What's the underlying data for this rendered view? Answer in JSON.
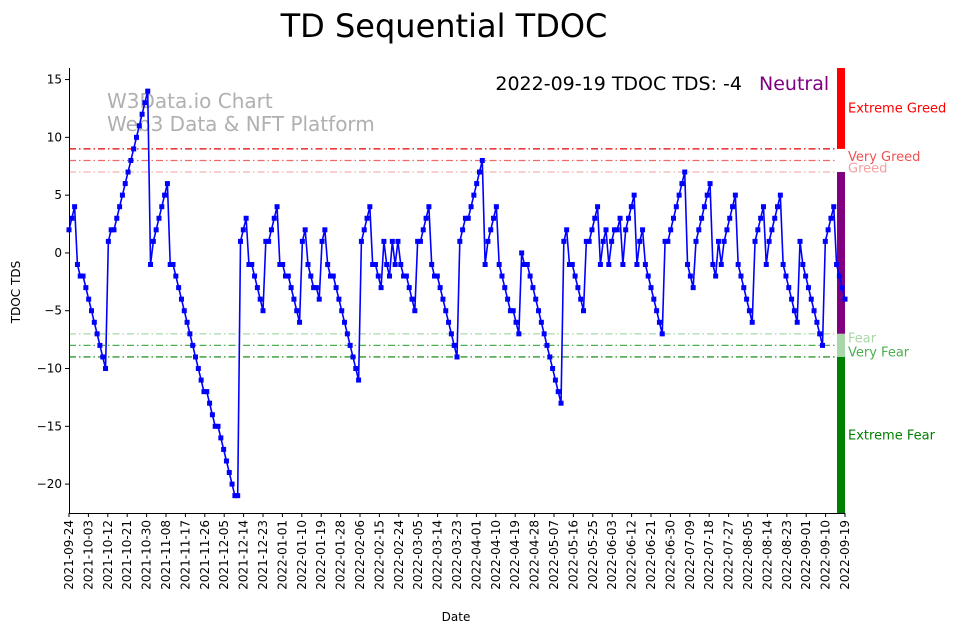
{
  "chart_data": {
    "type": "line",
    "title": "TD Sequential TDOC",
    "xlabel": "Date",
    "ylabel": "TDOC TDS",
    "ylim": [
      -22.5,
      16
    ],
    "yticks": [
      15,
      10,
      5,
      0,
      -5,
      -10,
      -15,
      -20
    ],
    "ytick_labels": [
      "15",
      "10",
      "5",
      "0",
      "−5",
      "−10",
      "−15",
      "−20"
    ],
    "x_start": "2021-09-24",
    "x_end": "2022-09-19",
    "xtick_labels": [
      "2021-09-24",
      "2021-10-03",
      "2021-10-12",
      "2021-10-21",
      "2021-10-30",
      "2021-11-08",
      "2021-11-17",
      "2021-11-26",
      "2021-12-05",
      "2021-12-14",
      "2021-12-23",
      "2022-01-01",
      "2022-01-10",
      "2022-01-19",
      "2022-01-28",
      "2022-02-06",
      "2022-02-15",
      "2022-02-24",
      "2022-03-05",
      "2022-03-14",
      "2022-03-23",
      "2022-04-01",
      "2022-04-10",
      "2022-04-19",
      "2022-04-28",
      "2022-05-07",
      "2022-05-16",
      "2022-05-25",
      "2022-06-03",
      "2022-06-12",
      "2022-06-21",
      "2022-06-30",
      "2022-07-09",
      "2022-07-18",
      "2022-07-27",
      "2022-08-05",
      "2022-08-14",
      "2022-08-23",
      "2022-09-01",
      "2022-09-10",
      "2022-09-19"
    ],
    "series": [
      {
        "name": "TDOC TDS",
        "color": "#0000ff",
        "values": [
          2,
          3,
          4,
          -1,
          -2,
          -2,
          -3,
          -4,
          -5,
          -6,
          -7,
          -8,
          -9,
          -10,
          1,
          2,
          2,
          3,
          4,
          5,
          6,
          7,
          8,
          9,
          10,
          11,
          12,
          13,
          14,
          -1,
          1,
          2,
          3,
          4,
          5,
          6,
          -1,
          -1,
          -2,
          -3,
          -4,
          -5,
          -6,
          -7,
          -8,
          -9,
          -10,
          -11,
          -12,
          -12,
          -13,
          -14,
          -15,
          -15,
          -16,
          -17,
          -18,
          -19,
          -20,
          -21,
          -21,
          1,
          2,
          3,
          -1,
          -1,
          -2,
          -3,
          -4,
          -5,
          1,
          1,
          2,
          3,
          4,
          -1,
          -1,
          -2,
          -2,
          -3,
          -4,
          -5,
          -6,
          1,
          2,
          -1,
          -2,
          -3,
          -3,
          -4,
          1,
          2,
          -1,
          -2,
          -2,
          -3,
          -4,
          -5,
          -6,
          -7,
          -8,
          -9,
          -10,
          -11,
          1,
          2,
          3,
          4,
          -1,
          -1,
          -2,
          -3,
          1,
          -1,
          -2,
          1,
          -1,
          1,
          -1,
          -2,
          -2,
          -3,
          -4,
          -5,
          1,
          1,
          2,
          3,
          4,
          -1,
          -2,
          -2,
          -3,
          -4,
          -5,
          -6,
          -7,
          -8,
          -9,
          1,
          2,
          3,
          3,
          4,
          5,
          6,
          7,
          8,
          -1,
          1,
          2,
          3,
          4,
          -1,
          -2,
          -3,
          -4,
          -5,
          -5,
          -6,
          -7,
          0,
          -1,
          -1,
          -2,
          -3,
          -4,
          -5,
          -6,
          -7,
          -8,
          -9,
          -10,
          -11,
          -12,
          -13,
          1,
          2,
          -1,
          -1,
          -2,
          -3,
          -4,
          -5,
          1,
          1,
          2,
          3,
          4,
          -1,
          1,
          2,
          -1,
          1,
          2,
          2,
          3,
          -1,
          2,
          3,
          4,
          5,
          -1,
          1,
          2,
          -1,
          -2,
          -3,
          -4,
          -5,
          -6,
          -7,
          1,
          1,
          2,
          3,
          4,
          5,
          6,
          7,
          -1,
          -2,
          -3,
          1,
          2,
          3,
          4,
          5,
          6,
          -1,
          -2,
          1,
          -1,
          1,
          2,
          3,
          4,
          5,
          -1,
          -2,
          -3,
          -4,
          -5,
          -6,
          1,
          2,
          3,
          4,
          -1,
          1,
          2,
          3,
          4,
          5,
          -1,
          -2,
          -3,
          -4,
          -5,
          -6,
          1,
          -1,
          -2,
          -3,
          -4,
          -5,
          -6,
          -7,
          -8,
          1,
          2,
          3,
          4,
          -1,
          -2,
          -3,
          -4
        ]
      }
    ],
    "reference_lines": [
      {
        "name": "very-greed-line",
        "y": 9,
        "color": "#e60000"
      },
      {
        "name": "greed-line-mid",
        "y": 8,
        "color": "#f06a6a"
      },
      {
        "name": "greed-line",
        "y": 7,
        "color": "#f4b0b0"
      },
      {
        "name": "fear-line",
        "y": -7,
        "color": "#a8d8a8"
      },
      {
        "name": "very-fear-line",
        "y": -8,
        "color": "#4caf50"
      },
      {
        "name": "extreme-fear-line",
        "y": -9,
        "color": "#008000"
      }
    ],
    "zone_bar": [
      {
        "name": "extreme-greed-zone",
        "from": 9,
        "to": 16,
        "color": "#ff0000"
      },
      {
        "name": "neutral-zone",
        "from": -7,
        "to": 7,
        "color": "#800080"
      },
      {
        "name": "fear-zone",
        "from": -9,
        "to": -7,
        "color": "#a8d8a8"
      },
      {
        "name": "extreme-fear-zone",
        "from": -22.5,
        "to": -9,
        "color": "#008000"
      }
    ],
    "zone_labels": [
      {
        "text": "Extreme Greed",
        "y": 12.5,
        "color": "#ff0000"
      },
      {
        "text": "Very Greed",
        "y": 8.3,
        "color": "#f05050"
      },
      {
        "text": "Greed",
        "y": 7.3,
        "color": "#f4a0a0"
      },
      {
        "text": "Fear",
        "y": -7.4,
        "color": "#a8d8a8"
      },
      {
        "text": "Very Fear",
        "y": -8.6,
        "color": "#4caf50"
      },
      {
        "text": "Extreme Fear",
        "y": -15.8,
        "color": "#008000"
      }
    ],
    "headline": "2022-09-19 TDOC TDS: -4",
    "status": {
      "text": "Neutral",
      "color": "#800080"
    },
    "watermark_line1": "W3Data.io Chart",
    "watermark_line2": "Web3 Data & NFT Platform"
  }
}
